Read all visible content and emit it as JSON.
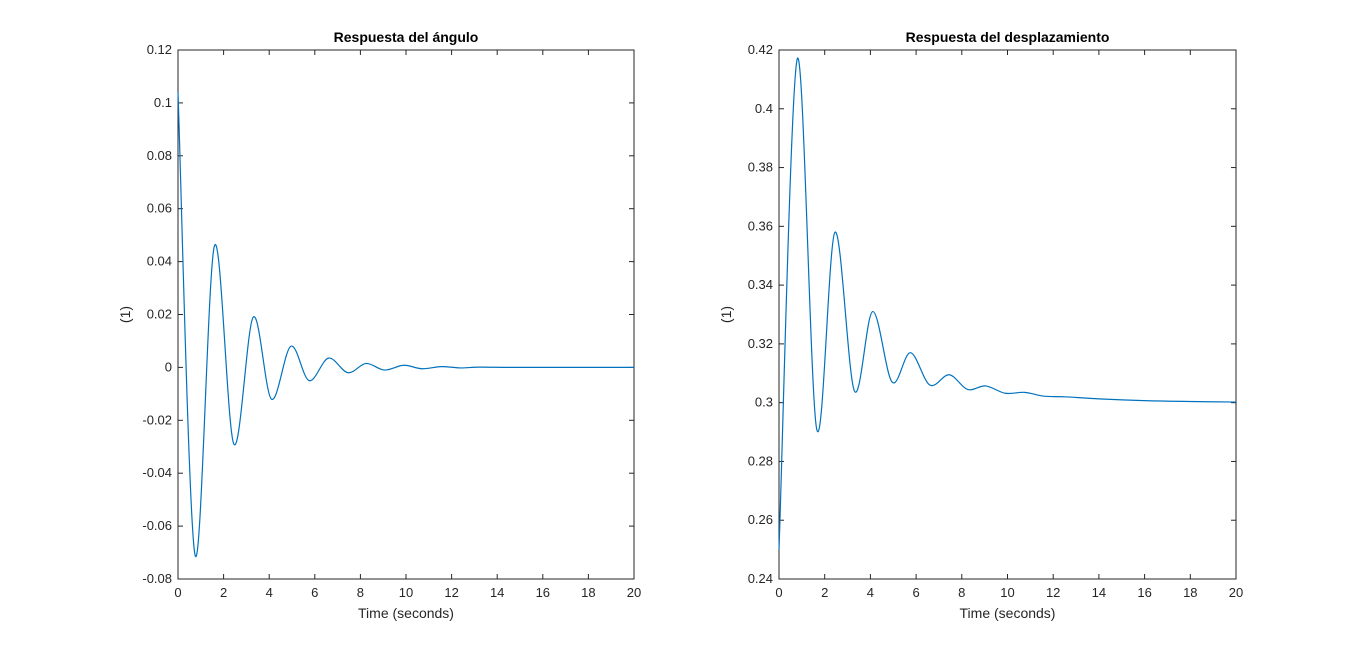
{
  "chart_data": [
    {
      "type": "line",
      "title": "Respuesta del ángulo",
      "xlabel": "Time (seconds)",
      "ylabel": "(1)",
      "xlim": [
        0,
        20
      ],
      "ylim": [
        -0.08,
        0.12
      ],
      "xticks": [
        0,
        2,
        4,
        6,
        8,
        10,
        12,
        14,
        16,
        18,
        20
      ],
      "yticks": [
        -0.08,
        -0.06,
        -0.04,
        -0.02,
        0,
        0.02,
        0.04,
        0.06,
        0.08,
        0.1,
        0.12
      ],
      "xtick_labels": [
        "0",
        "2",
        "4",
        "6",
        "8",
        "10",
        "12",
        "14",
        "16",
        "18",
        "20"
      ],
      "ytick_labels": [
        "-0.08",
        "-0.06",
        "-0.04",
        "-0.02",
        "0",
        "0.02",
        "0.04",
        "0.06",
        "0.08",
        "0.1",
        "0.12"
      ],
      "grid": false,
      "line_color": "#0072BD",
      "series": [
        {
          "x": [
            0,
            0.75,
            1.6,
            2.45,
            3.3,
            4.1,
            4.95,
            5.75,
            6.6,
            7.45,
            8.25,
            9.05,
            9.9,
            10.7,
            11.55,
            12.4,
            13.2,
            14.5,
            16,
            18,
            20
          ],
          "y": [
            0.104,
            -0.071,
            0.046,
            -0.029,
            0.019,
            -0.012,
            0.008,
            -0.005,
            0.0035,
            -0.002,
            0.0015,
            -0.001,
            0.0008,
            -0.0005,
            0.0003,
            -0.0002,
            0.0001,
            0,
            0,
            0,
            0
          ]
        }
      ]
    },
    {
      "type": "line",
      "title": "Respuesta del desplazamiento",
      "xlabel": "Time (seconds)",
      "ylabel": "(1)",
      "xlim": [
        0,
        20
      ],
      "ylim": [
        0.24,
        0.42
      ],
      "xticks": [
        0,
        2,
        4,
        6,
        8,
        10,
        12,
        14,
        16,
        18,
        20
      ],
      "yticks": [
        0.24,
        0.26,
        0.28,
        0.3,
        0.32,
        0.34,
        0.36,
        0.38,
        0.4,
        0.42
      ],
      "xtick_labels": [
        "0",
        "2",
        "4",
        "6",
        "8",
        "10",
        "12",
        "14",
        "16",
        "18",
        "20"
      ],
      "ytick_labels": [
        "0.24",
        "0.26",
        "0.28",
        "0.3",
        "0.32",
        "0.34",
        "0.36",
        "0.38",
        "0.4",
        "0.42"
      ],
      "grid": false,
      "line_color": "#0072BD",
      "series": [
        {
          "x": [
            0,
            0.8,
            1.65,
            2.45,
            3.3,
            4.1,
            4.95,
            5.75,
            6.6,
            7.45,
            8.25,
            9.05,
            9.9,
            10.75,
            11.6,
            12.5,
            14,
            16,
            18,
            20
          ],
          "y": [
            0.25,
            0.417,
            0.291,
            0.358,
            0.304,
            0.331,
            0.307,
            0.317,
            0.306,
            0.3095,
            0.3045,
            0.3057,
            0.3032,
            0.3035,
            0.3022,
            0.302,
            0.3013,
            0.3007,
            0.3004,
            0.3002
          ]
        }
      ]
    }
  ]
}
